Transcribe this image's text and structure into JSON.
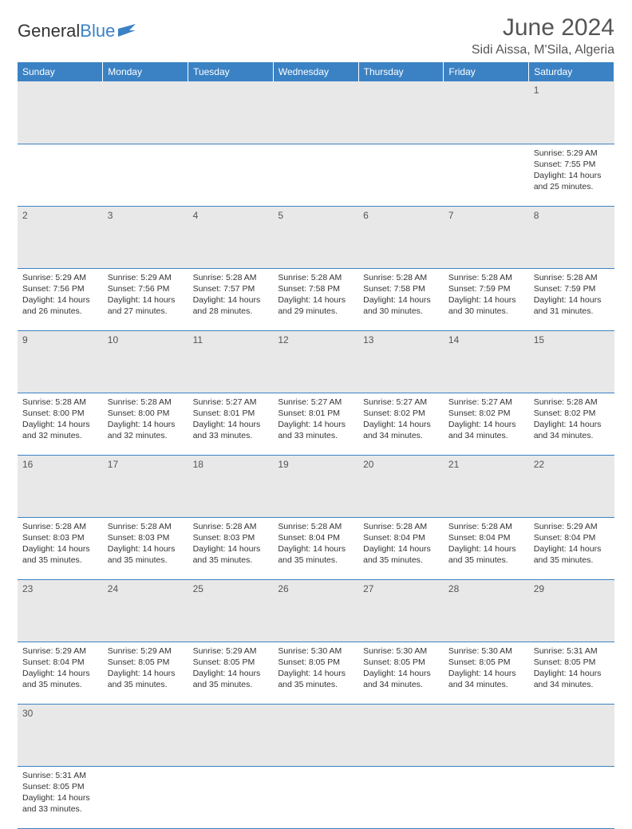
{
  "logo": {
    "text1": "General",
    "text2": "Blue",
    "flag_color": "#3b82c4"
  },
  "title": "June 2024",
  "location": "Sidi Aissa, M'Sila, Algeria",
  "colors": {
    "header_bg": "#3b82c4",
    "header_text": "#ffffff",
    "daynum_bg": "#e8e8e8",
    "border": "#3b82c4"
  },
  "day_headers": [
    "Sunday",
    "Monday",
    "Tuesday",
    "Wednesday",
    "Thursday",
    "Friday",
    "Saturday"
  ],
  "weeks": [
    {
      "nums": [
        "",
        "",
        "",
        "",
        "",
        "",
        "1"
      ],
      "cells": [
        null,
        null,
        null,
        null,
        null,
        null,
        {
          "sunrise": "5:29 AM",
          "sunset": "7:55 PM",
          "daylight": "14 hours and 25 minutes."
        }
      ]
    },
    {
      "nums": [
        "2",
        "3",
        "4",
        "5",
        "6",
        "7",
        "8"
      ],
      "cells": [
        {
          "sunrise": "5:29 AM",
          "sunset": "7:56 PM",
          "daylight": "14 hours and 26 minutes."
        },
        {
          "sunrise": "5:29 AM",
          "sunset": "7:56 PM",
          "daylight": "14 hours and 27 minutes."
        },
        {
          "sunrise": "5:28 AM",
          "sunset": "7:57 PM",
          "daylight": "14 hours and 28 minutes."
        },
        {
          "sunrise": "5:28 AM",
          "sunset": "7:58 PM",
          "daylight": "14 hours and 29 minutes."
        },
        {
          "sunrise": "5:28 AM",
          "sunset": "7:58 PM",
          "daylight": "14 hours and 30 minutes."
        },
        {
          "sunrise": "5:28 AM",
          "sunset": "7:59 PM",
          "daylight": "14 hours and 30 minutes."
        },
        {
          "sunrise": "5:28 AM",
          "sunset": "7:59 PM",
          "daylight": "14 hours and 31 minutes."
        }
      ]
    },
    {
      "nums": [
        "9",
        "10",
        "11",
        "12",
        "13",
        "14",
        "15"
      ],
      "cells": [
        {
          "sunrise": "5:28 AM",
          "sunset": "8:00 PM",
          "daylight": "14 hours and 32 minutes."
        },
        {
          "sunrise": "5:28 AM",
          "sunset": "8:00 PM",
          "daylight": "14 hours and 32 minutes."
        },
        {
          "sunrise": "5:27 AM",
          "sunset": "8:01 PM",
          "daylight": "14 hours and 33 minutes."
        },
        {
          "sunrise": "5:27 AM",
          "sunset": "8:01 PM",
          "daylight": "14 hours and 33 minutes."
        },
        {
          "sunrise": "5:27 AM",
          "sunset": "8:02 PM",
          "daylight": "14 hours and 34 minutes."
        },
        {
          "sunrise": "5:27 AM",
          "sunset": "8:02 PM",
          "daylight": "14 hours and 34 minutes."
        },
        {
          "sunrise": "5:28 AM",
          "sunset": "8:02 PM",
          "daylight": "14 hours and 34 minutes."
        }
      ]
    },
    {
      "nums": [
        "16",
        "17",
        "18",
        "19",
        "20",
        "21",
        "22"
      ],
      "cells": [
        {
          "sunrise": "5:28 AM",
          "sunset": "8:03 PM",
          "daylight": "14 hours and 35 minutes."
        },
        {
          "sunrise": "5:28 AM",
          "sunset": "8:03 PM",
          "daylight": "14 hours and 35 minutes."
        },
        {
          "sunrise": "5:28 AM",
          "sunset": "8:03 PM",
          "daylight": "14 hours and 35 minutes."
        },
        {
          "sunrise": "5:28 AM",
          "sunset": "8:04 PM",
          "daylight": "14 hours and 35 minutes."
        },
        {
          "sunrise": "5:28 AM",
          "sunset": "8:04 PM",
          "daylight": "14 hours and 35 minutes."
        },
        {
          "sunrise": "5:28 AM",
          "sunset": "8:04 PM",
          "daylight": "14 hours and 35 minutes."
        },
        {
          "sunrise": "5:29 AM",
          "sunset": "8:04 PM",
          "daylight": "14 hours and 35 minutes."
        }
      ]
    },
    {
      "nums": [
        "23",
        "24",
        "25",
        "26",
        "27",
        "28",
        "29"
      ],
      "cells": [
        {
          "sunrise": "5:29 AM",
          "sunset": "8:04 PM",
          "daylight": "14 hours and 35 minutes."
        },
        {
          "sunrise": "5:29 AM",
          "sunset": "8:05 PM",
          "daylight": "14 hours and 35 minutes."
        },
        {
          "sunrise": "5:29 AM",
          "sunset": "8:05 PM",
          "daylight": "14 hours and 35 minutes."
        },
        {
          "sunrise": "5:30 AM",
          "sunset": "8:05 PM",
          "daylight": "14 hours and 35 minutes."
        },
        {
          "sunrise": "5:30 AM",
          "sunset": "8:05 PM",
          "daylight": "14 hours and 34 minutes."
        },
        {
          "sunrise": "5:30 AM",
          "sunset": "8:05 PM",
          "daylight": "14 hours and 34 minutes."
        },
        {
          "sunrise": "5:31 AM",
          "sunset": "8:05 PM",
          "daylight": "14 hours and 34 minutes."
        }
      ]
    },
    {
      "nums": [
        "30",
        "",
        "",
        "",
        "",
        "",
        ""
      ],
      "cells": [
        {
          "sunrise": "5:31 AM",
          "sunset": "8:05 PM",
          "daylight": "14 hours and 33 minutes."
        },
        null,
        null,
        null,
        null,
        null,
        null
      ]
    }
  ],
  "labels": {
    "sunrise": "Sunrise: ",
    "sunset": "Sunset: ",
    "daylight": "Daylight: "
  }
}
